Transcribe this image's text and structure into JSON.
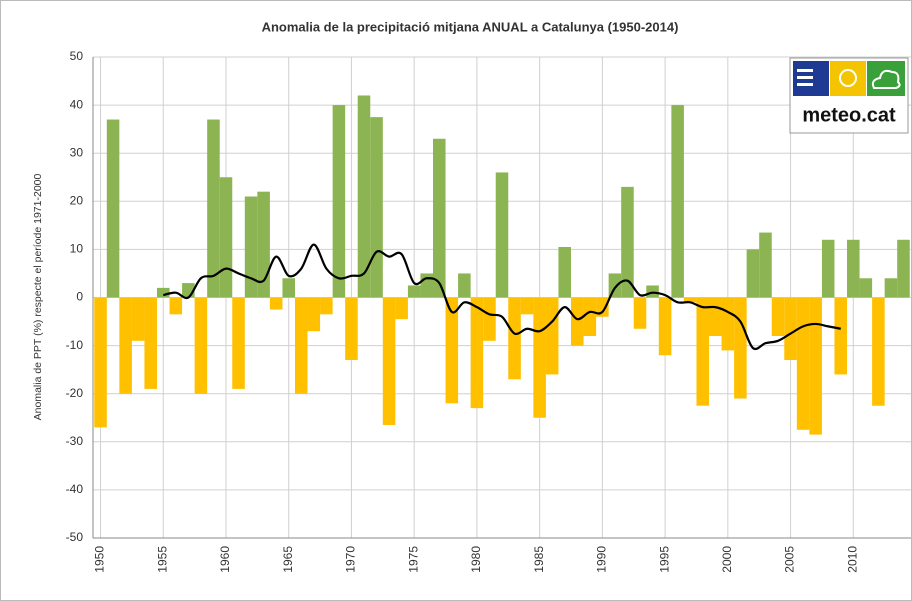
{
  "chart_data": {
    "type": "bar",
    "title": "Anomalia de la precipitació mitjana ANUAL a Catalunya (1950-2014)",
    "y_label": "Anomalia de PPT (%) respecte el període 1971-2000",
    "logo": "meteo.cat",
    "x": [
      1950,
      1951,
      1952,
      1953,
      1954,
      1955,
      1956,
      1957,
      1958,
      1959,
      1960,
      1961,
      1962,
      1963,
      1964,
      1965,
      1966,
      1967,
      1968,
      1969,
      1970,
      1971,
      1972,
      1973,
      1974,
      1975,
      1976,
      1977,
      1978,
      1979,
      1980,
      1981,
      1982,
      1983,
      1984,
      1985,
      1986,
      1987,
      1988,
      1989,
      1990,
      1991,
      1992,
      1993,
      1994,
      1995,
      1996,
      1997,
      1998,
      1999,
      2000,
      2001,
      2002,
      2003,
      2004,
      2005,
      2006,
      2007,
      2008,
      2009,
      2010,
      2011,
      2012,
      2013,
      2014
    ],
    "values": [
      -27,
      37,
      -20,
      -9,
      -19,
      2,
      -3.5,
      3,
      -20,
      37,
      25,
      -19,
      21,
      22,
      -2.5,
      4,
      -20,
      -7,
      -3.5,
      40,
      -13,
      42,
      37.5,
      -26.5,
      -4.5,
      2.5,
      5,
      33,
      -22,
      5,
      -23,
      -9,
      26,
      -17,
      -3.5,
      -25,
      -16,
      10.5,
      -10,
      -8,
      -4,
      5,
      23,
      -6.5,
      2.5,
      -12,
      40,
      -1,
      -22.5,
      -8,
      -11,
      -21,
      10,
      13.5,
      -8,
      -13,
      -27.5,
      -28.5,
      12,
      -16,
      12,
      4,
      -22.5,
      4,
      12
    ],
    "positive_color": "#8cb452",
    "negative_color": "#ffc000",
    "line": {
      "color": "#000000",
      "values": [
        null,
        null,
        null,
        null,
        null,
        0.5,
        1,
        0,
        4,
        4.5,
        6,
        5,
        4,
        3.5,
        8.5,
        4.5,
        6,
        11,
        6,
        4,
        4.5,
        5,
        9.5,
        8.5,
        9,
        3,
        4,
        3,
        -3,
        -1,
        -2,
        -3.5,
        -4,
        -7.5,
        -6.5,
        -7,
        -5,
        -2,
        -4.5,
        -3,
        -3,
        2,
        3.5,
        0.5,
        1,
        0.5,
        -1,
        -1,
        -2,
        -2,
        -3,
        -5,
        -10.5,
        -9.5,
        -9,
        -7.5,
        -6,
        -5.5,
        -6,
        -6.5,
        null,
        null,
        null,
        null,
        null
      ]
    },
    "xlim": [
      1949.4,
      2014.6
    ],
    "xticks": [
      1950,
      1955,
      1960,
      1965,
      1970,
      1975,
      1980,
      1985,
      1990,
      1995,
      2000,
      2005,
      2010
    ],
    "ylim": [
      -50,
      50
    ],
    "yticks": [
      -50,
      -40,
      -30,
      -20,
      -10,
      0,
      10,
      20,
      30,
      40,
      50
    ],
    "grid": true
  }
}
